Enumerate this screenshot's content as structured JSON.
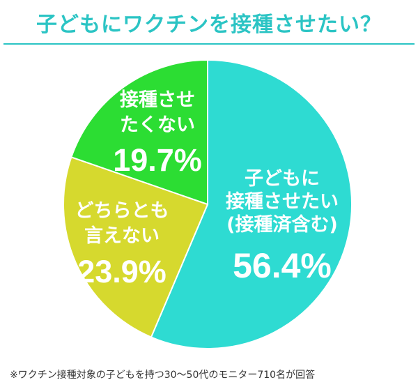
{
  "chart_data": {
    "type": "pie",
    "title": "子どもにワクチンを接種させたい？",
    "start_angle_deg": 0,
    "direction": "clockwise",
    "slices": [
      {
        "label_lines": [
          "子どもに",
          "接種させたい",
          "(接種済含む)"
        ],
        "value": 56.4,
        "value_label": "56.4%",
        "color": "#2edbd2"
      },
      {
        "label_lines": [
          "どちらとも",
          "言えない"
        ],
        "value": 23.9,
        "value_label": "23.9%",
        "color": "#d6d92e"
      },
      {
        "label_lines": [
          "接種させ",
          "たくない"
        ],
        "value": 19.7,
        "value_label": "19.7%",
        "color": "#2cdd33"
      }
    ]
  },
  "footnote": "※ワクチン接種対象の子どもを持つ30〜50代のモニター710名が回答"
}
